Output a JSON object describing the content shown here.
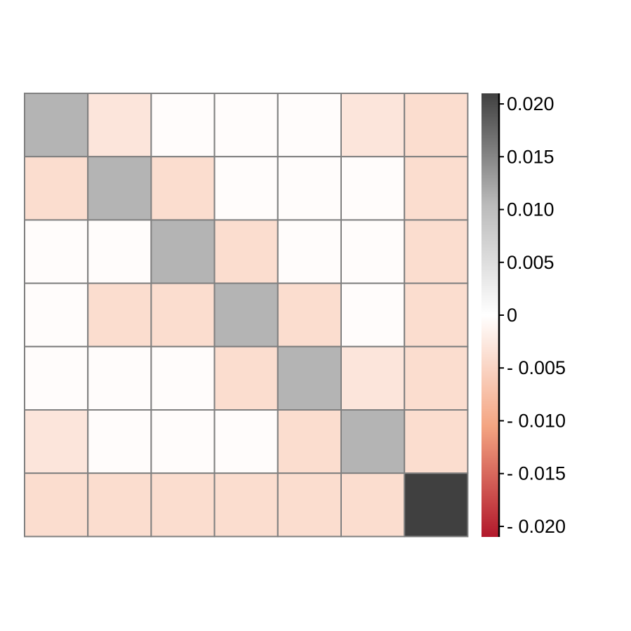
{
  "chart_data": {
    "type": "heatmap",
    "title": "",
    "xlabel": "",
    "ylabel": "",
    "rows": 7,
    "cols": 7,
    "values": [
      [
        0.011,
        -0.003,
        -0.0003,
        -0.0003,
        -0.0003,
        -0.003,
        -0.004
      ],
      [
        -0.004,
        0.011,
        -0.004,
        -0.0003,
        -0.0003,
        -0.0003,
        -0.004
      ],
      [
        -0.0003,
        -0.0003,
        0.011,
        -0.004,
        -0.0003,
        -0.0003,
        -0.004
      ],
      [
        -0.0003,
        -0.004,
        -0.004,
        0.011,
        -0.004,
        -0.0003,
        -0.004
      ],
      [
        -0.0003,
        -0.0003,
        -0.0003,
        -0.004,
        0.011,
        -0.003,
        -0.004
      ],
      [
        -0.003,
        -0.0003,
        -0.0003,
        -0.0003,
        -0.004,
        0.011,
        -0.004
      ],
      [
        -0.004,
        -0.004,
        -0.004,
        -0.004,
        -0.004,
        -0.004,
        0.021
      ]
    ],
    "color_scale": {
      "range": [
        -0.021,
        0.021
      ],
      "stops": [
        {
          "value": -0.021,
          "color": "#b2182b"
        },
        {
          "value": -0.0105,
          "color": "#f4a582"
        },
        {
          "value": 0,
          "color": "#ffffff"
        },
        {
          "value": 0.0105,
          "color": "#bababa"
        },
        {
          "value": 0.021,
          "color": "#404040"
        }
      ],
      "ticks": [
        {
          "value": 0.02,
          "label": "0.020"
        },
        {
          "value": 0.015,
          "label": "0.015"
        },
        {
          "value": 0.01,
          "label": "0.010"
        },
        {
          "value": 0.005,
          "label": "0.005"
        },
        {
          "value": 0,
          "label": "0"
        },
        {
          "value": -0.005,
          "label": "- 0.005"
        },
        {
          "value": -0.01,
          "label": "- 0.010"
        },
        {
          "value": -0.015,
          "label": "- 0.015"
        },
        {
          "value": -0.02,
          "label": "- 0.020"
        }
      ]
    },
    "grid_color": "#808080",
    "legend": "right"
  }
}
